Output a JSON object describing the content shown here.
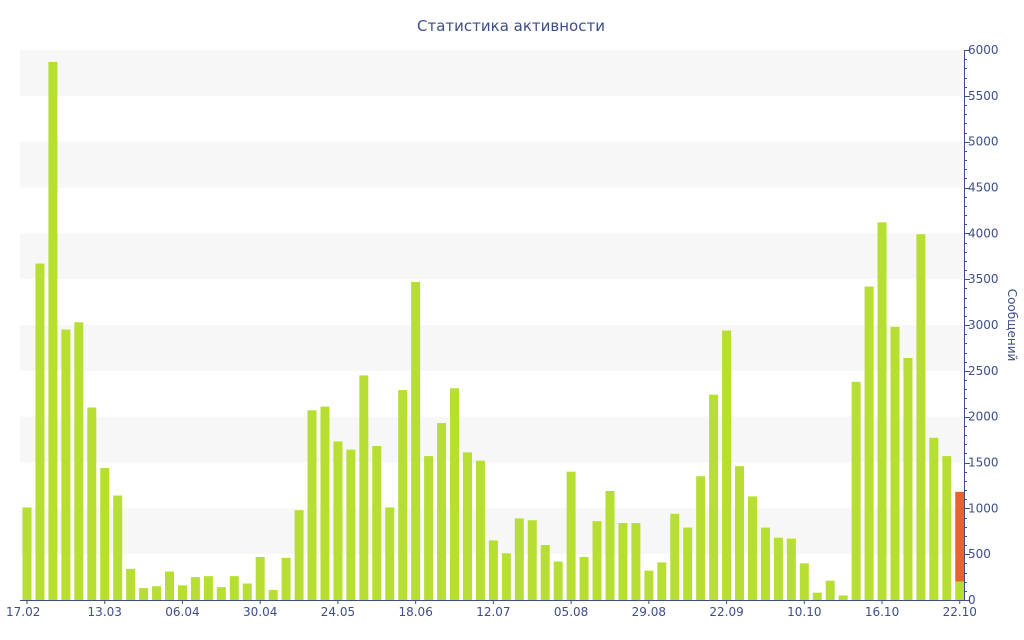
{
  "chart_data": {
    "type": "bar",
    "title": "Статистика активности",
    "ylabel": "Сообщений",
    "xlabel": "",
    "ylim": [
      0,
      6000
    ],
    "y_ticks": [
      0,
      500,
      1000,
      1500,
      2000,
      2500,
      3000,
      3500,
      4000,
      4500,
      5000,
      5500,
      6000
    ],
    "y_axis_side": "right",
    "x_ticks": [
      {
        "label": "17.02",
        "index": 0
      },
      {
        "label": "13.03",
        "index": 6
      },
      {
        "label": "06.04",
        "index": 12
      },
      {
        "label": "30.04",
        "index": 18
      },
      {
        "label": "24.05",
        "index": 24
      },
      {
        "label": "18.06",
        "index": 30
      },
      {
        "label": "12.07",
        "index": 36
      },
      {
        "label": "05.08",
        "index": 42
      },
      {
        "label": "29.08",
        "index": 48
      },
      {
        "label": "22.09",
        "index": 54
      },
      {
        "label": "10.10",
        "index": 60
      },
      {
        "label": "16.10",
        "index": 66
      },
      {
        "label": "22.10",
        "index": 72
      }
    ],
    "grid": "alternating horizontal bands",
    "colors": {
      "bar": "#b7de32",
      "highlight": "#e8622f",
      "band": "#f7f7f7",
      "axis": "#3e4e86"
    },
    "values": [
      1010,
      3670,
      5870,
      2950,
      3030,
      2100,
      1440,
      1140,
      340,
      130,
      150,
      310,
      160,
      250,
      260,
      140,
      260,
      180,
      470,
      110,
      460,
      980,
      2070,
      2110,
      1730,
      1640,
      2450,
      1680,
      1010,
      2290,
      3470,
      1570,
      1930,
      2310,
      1610,
      1520,
      650,
      510,
      890,
      870,
      600,
      420,
      1400,
      470,
      860,
      1190,
      840,
      840,
      320,
      410,
      940,
      790,
      1350,
      2240,
      2940,
      1460,
      1130,
      790,
      680,
      670,
      400,
      80,
      210,
      50,
      2380,
      3420,
      4120,
      2980,
      2640,
      3990,
      1770,
      1570,
      1180
    ],
    "highlight": {
      "index": 72,
      "value": 1180,
      "base_value": 200
    }
  }
}
